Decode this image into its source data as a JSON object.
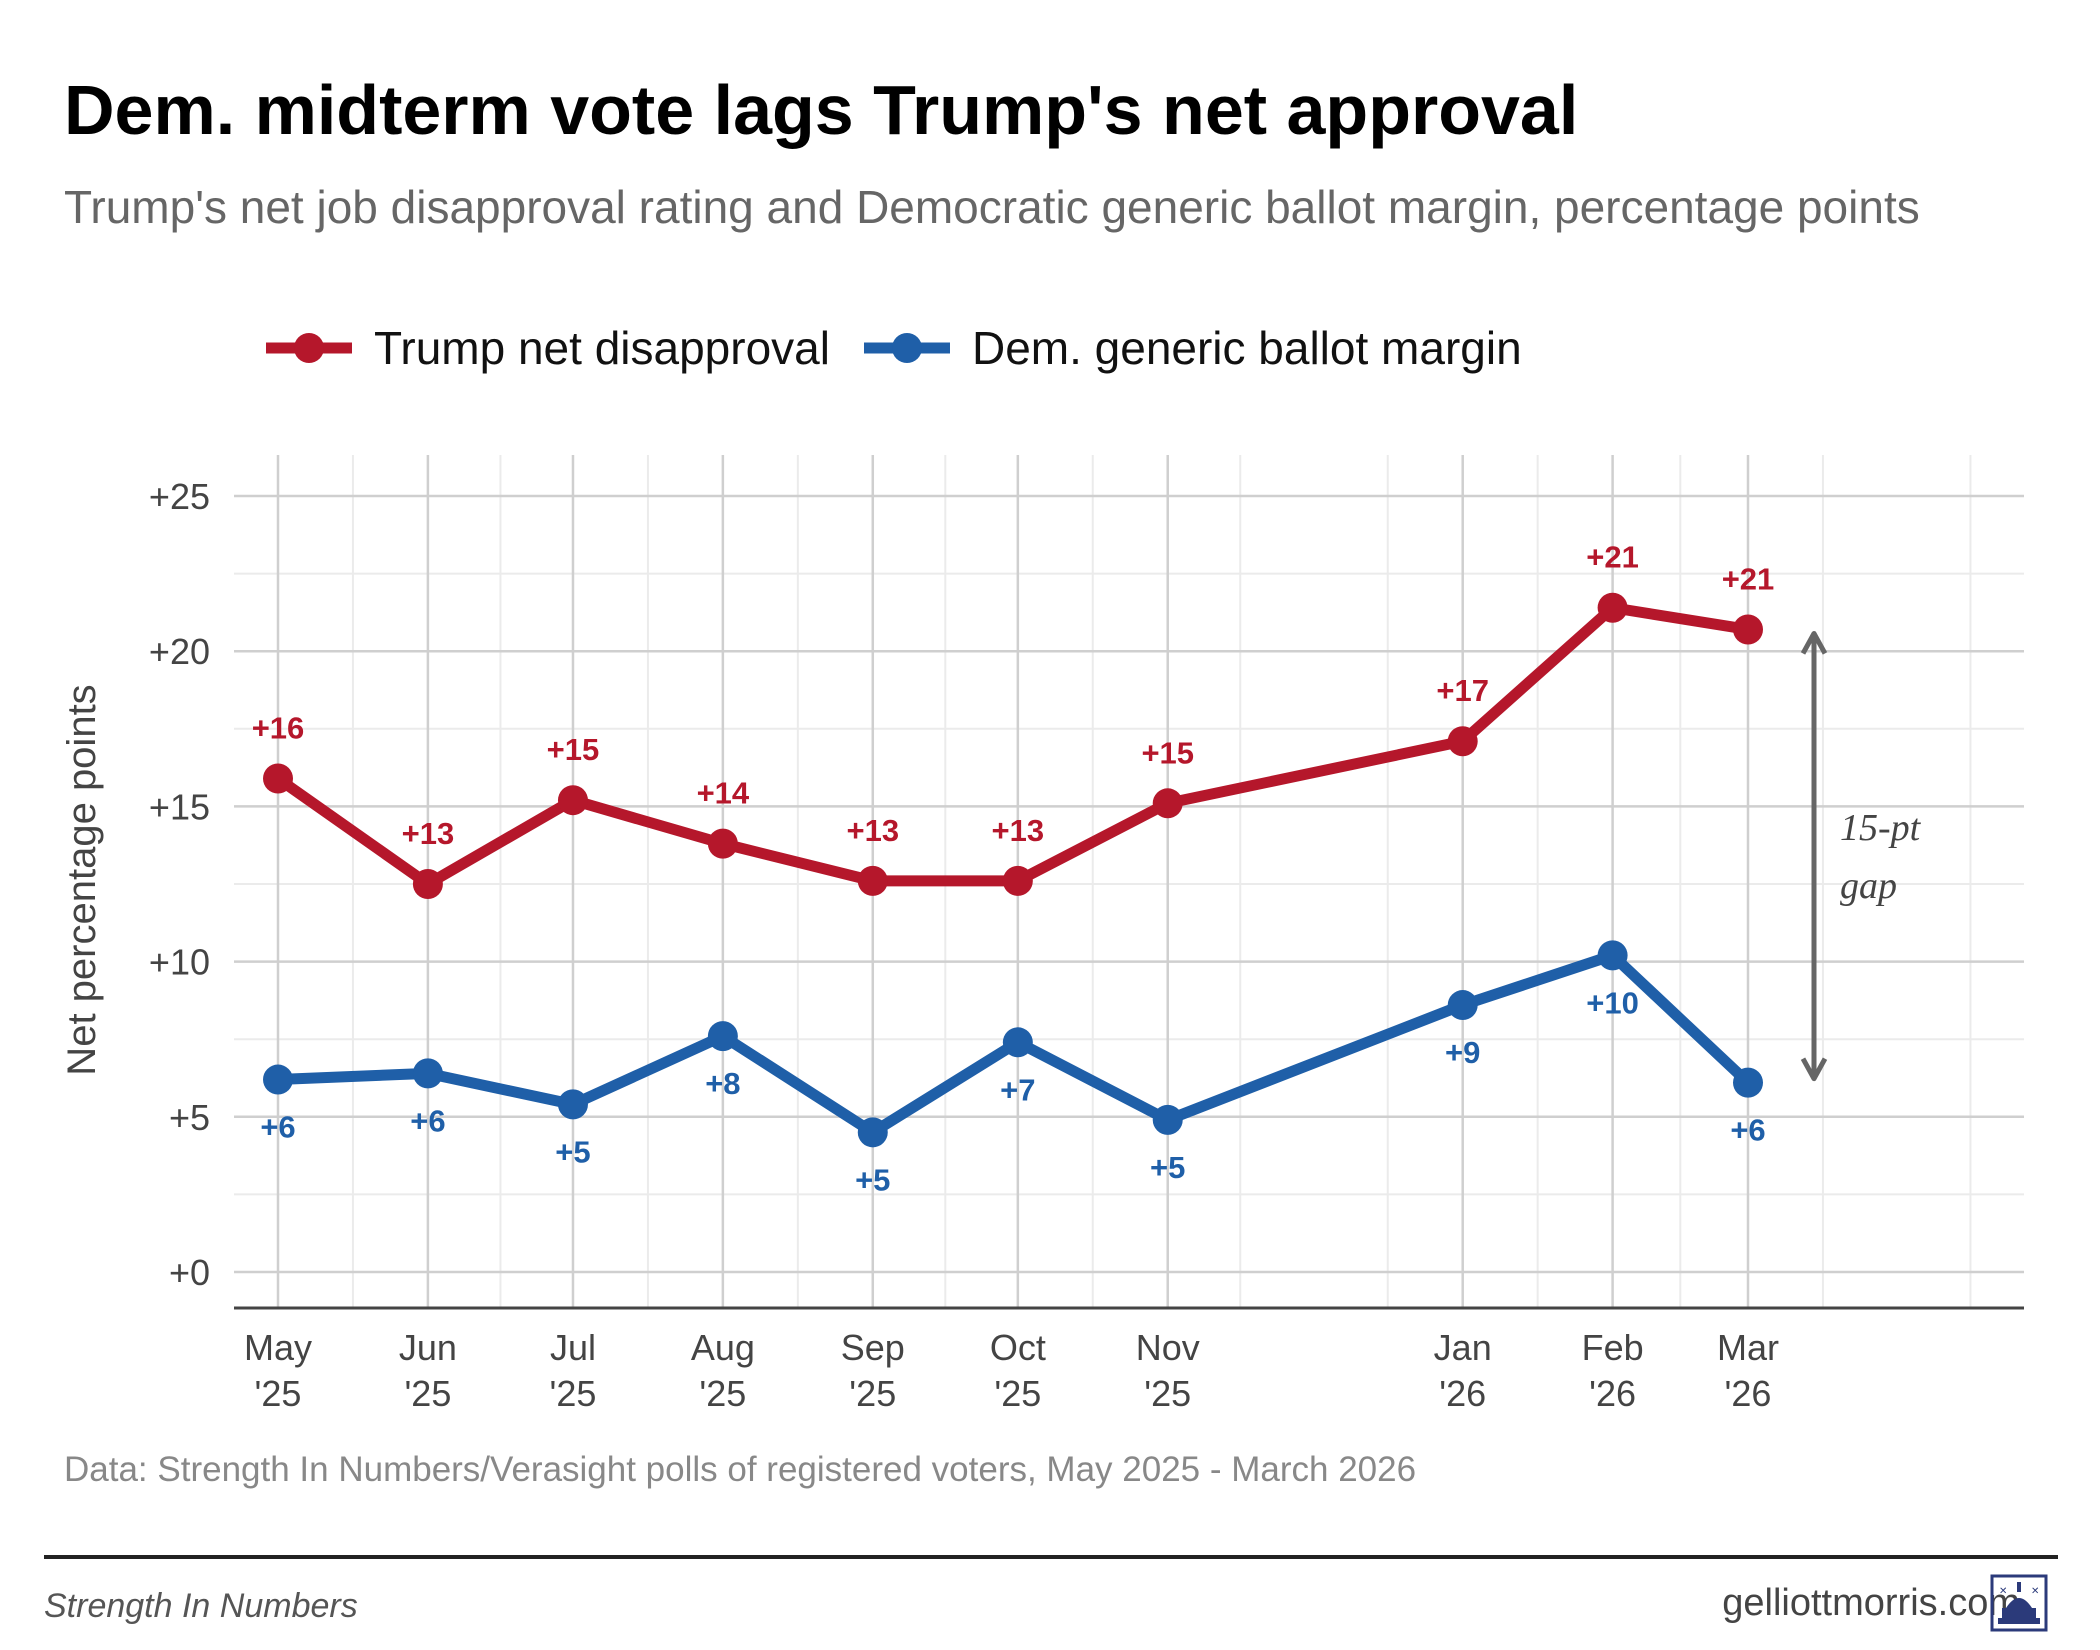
{
  "title": "Dem. midterm vote lags Trump's net approval",
  "subtitle": "Trump's net job disapproval rating and Democratic generic ballot margin, percentage points",
  "caption": "Data: Strength In Numbers/Verasight polls of registered voters, May 2025 - March 2026",
  "footer": {
    "left": "Strength In Numbers",
    "right": "gelliottmorris.com"
  },
  "colors": {
    "red": "#b5172b",
    "blue": "#1f5fa8",
    "grid_major": "#cfcfcf",
    "grid_minor": "#ebebeb",
    "axis": "#444444",
    "annotation": "#666666"
  },
  "icons": {
    "logo": "capitol-dome-icon"
  },
  "chart_data": {
    "type": "line",
    "title": "Dem. midterm vote lags Trump's net approval",
    "subtitle": "Trump's net job disapproval rating and Democratic generic ballot margin, percentage points",
    "xlabel": "",
    "ylabel": "Net percentage points",
    "ylim": [
      0,
      25
    ],
    "xlim": [
      "2025-05-01",
      "2026-05-15"
    ],
    "yticks": [
      0,
      5,
      10,
      15,
      20,
      25
    ],
    "ytick_labels": [
      "+0",
      "+5",
      "+10",
      "+15",
      "+20",
      "+25"
    ],
    "x_dates": [
      "2025-05-01",
      "2025-06-01",
      "2025-07-01",
      "2025-08-01",
      "2025-09-01",
      "2025-10-01",
      "2025-11-01",
      "2026-01-01",
      "2026-02-01",
      "2026-03-01"
    ],
    "xtick_labels": [
      "May\n'25",
      "Jun\n'25",
      "Jul\n'25",
      "Aug\n'25",
      "Sep\n'25",
      "Oct\n'25",
      "Nov\n'25",
      "Jan\n'26",
      "Feb\n'26",
      "Mar\n'26"
    ],
    "grid": true,
    "legend_position": "top-left",
    "series": [
      {
        "name": "Trump net disapproval",
        "color": "#b5172b",
        "x": [
          "2025-05-01",
          "2025-06-01",
          "2025-07-01",
          "2025-08-01",
          "2025-09-01",
          "2025-10-01",
          "2025-11-01",
          "2026-01-01",
          "2026-02-01",
          "2026-03-01"
        ],
        "values": [
          15.9,
          12.5,
          15.2,
          13.8,
          12.6,
          12.6,
          15.1,
          17.1,
          21.4,
          20.7
        ],
        "labels": [
          "+16",
          "+13",
          "+15",
          "+14",
          "+13",
          "+13",
          "+15",
          "+17",
          "+21",
          "+21"
        ],
        "label_position": "above"
      },
      {
        "name": "Dem. generic ballot margin",
        "color": "#1f5fa8",
        "x": [
          "2025-05-01",
          "2025-06-01",
          "2025-07-01",
          "2025-08-01",
          "2025-09-01",
          "2025-10-01",
          "2025-11-01",
          "2026-01-01",
          "2026-02-01",
          "2026-03-01"
        ],
        "values": [
          6.2,
          6.4,
          5.4,
          7.6,
          4.5,
          7.4,
          4.9,
          8.6,
          10.2,
          6.1
        ],
        "labels": [
          "+6",
          "+6",
          "+5",
          "+8",
          "+5",
          "+7",
          "+5",
          "+9",
          "+10",
          "+6"
        ],
        "label_position": "below"
      }
    ],
    "annotation": {
      "text_lines": [
        "15-pt",
        "gap"
      ],
      "arrow_from": 20.7,
      "arrow_to": 6.1
    }
  }
}
